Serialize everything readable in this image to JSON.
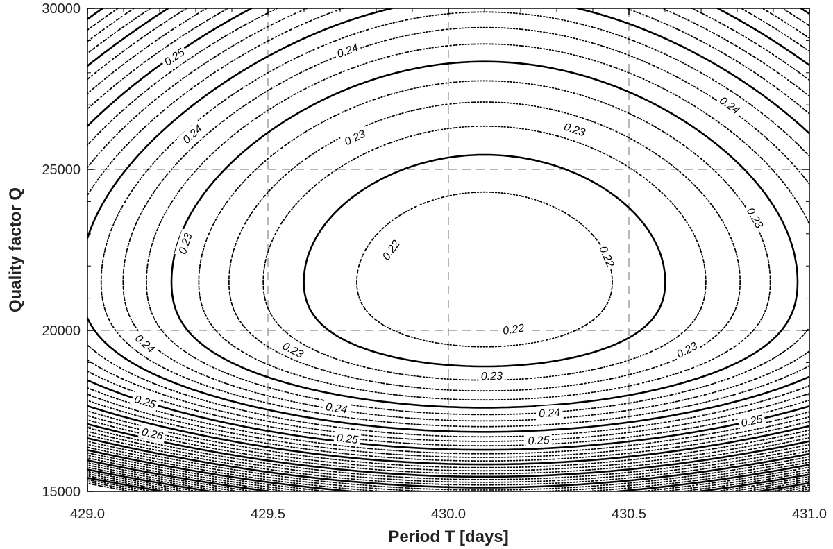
{
  "chart_data": {
    "type": "contour",
    "xlabel": "Period T [days]",
    "ylabel": "Quality factor Q",
    "xlim": [
      429.0,
      431.0
    ],
    "ylim": [
      15000,
      30000
    ],
    "x_ticks": [
      "429.0",
      "429.5",
      "430.0",
      "430.5",
      "431.0"
    ],
    "y_ticks": [
      "15000",
      "20000",
      "25000",
      "30000"
    ],
    "grid": "dashed at major ticks",
    "minimum": {
      "T": 430.1,
      "Q": 21500,
      "value": 0.215
    },
    "labeled_levels": [
      "0.22",
      "0.23",
      "0.24",
      "0.25",
      "0.26"
    ],
    "contour_labels": [
      {
        "text": "0.25",
        "x": 429.24,
        "y": 28500
      },
      {
        "text": "0.24",
        "x": 429.72,
        "y": 28700
      },
      {
        "text": "0.24",
        "x": 430.78,
        "y": 27000
      },
      {
        "text": "0.24",
        "x": 429.29,
        "y": 26100
      },
      {
        "text": "0.23",
        "x": 429.74,
        "y": 26000
      },
      {
        "text": "0.23",
        "x": 430.35,
        "y": 26250
      },
      {
        "text": "0.23",
        "x": 430.85,
        "y": 23500
      },
      {
        "text": "0.23",
        "x": 429.27,
        "y": 22700
      },
      {
        "text": "0.22",
        "x": 429.84,
        "y": 22500
      },
      {
        "text": "0.22",
        "x": 430.44,
        "y": 22300
      },
      {
        "text": "0.22",
        "x": 430.18,
        "y": 20050
      },
      {
        "text": "0.24",
        "x": 429.16,
        "y": 19600
      },
      {
        "text": "0.23",
        "x": 429.57,
        "y": 19400
      },
      {
        "text": "0.23",
        "x": 430.12,
        "y": 18600
      },
      {
        "text": "0.23",
        "x": 430.66,
        "y": 19400
      },
      {
        "text": "0.25",
        "x": 429.16,
        "y": 17800
      },
      {
        "text": "0.24",
        "x": 429.69,
        "y": 17600
      },
      {
        "text": "0.24",
        "x": 430.28,
        "y": 17450
      },
      {
        "text": "0.25",
        "x": 430.84,
        "y": 17200
      },
      {
        "text": "0.26",
        "x": 429.18,
        "y": 16800
      },
      {
        "text": "0.25",
        "x": 429.72,
        "y": 16650
      },
      {
        "text": "0.25",
        "x": 430.25,
        "y": 16600
      }
    ]
  }
}
